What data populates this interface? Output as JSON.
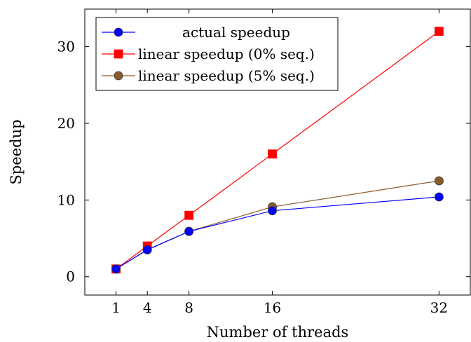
{
  "chart_data": {
    "type": "line",
    "xlabel": "Number of threads",
    "ylabel": "Speedup",
    "x": [
      1,
      4,
      8,
      16,
      32
    ],
    "xlim": [
      -2,
      35
    ],
    "ylim": [
      -2.4,
      34.9
    ],
    "xticks": [
      1,
      4,
      8,
      16,
      32
    ],
    "yticks": [
      0,
      10,
      20,
      30
    ],
    "grid": false,
    "legend_position": "top-left",
    "series": [
      {
        "name": "actual speedup",
        "color": "#0000ff",
        "marker": "circle",
        "values": [
          1,
          3.5,
          5.9,
          8.6,
          10.4
        ]
      },
      {
        "name": "linear speedup (0% seq.)",
        "color": "#ff0000",
        "marker": "square",
        "values": [
          1,
          4,
          8,
          16,
          32
        ]
      },
      {
        "name": "linear speedup (5% seq.)",
        "color": "#8b5a2b",
        "marker": "circle",
        "values": [
          1,
          3.5,
          5.9,
          9.1,
          12.5
        ]
      }
    ]
  }
}
